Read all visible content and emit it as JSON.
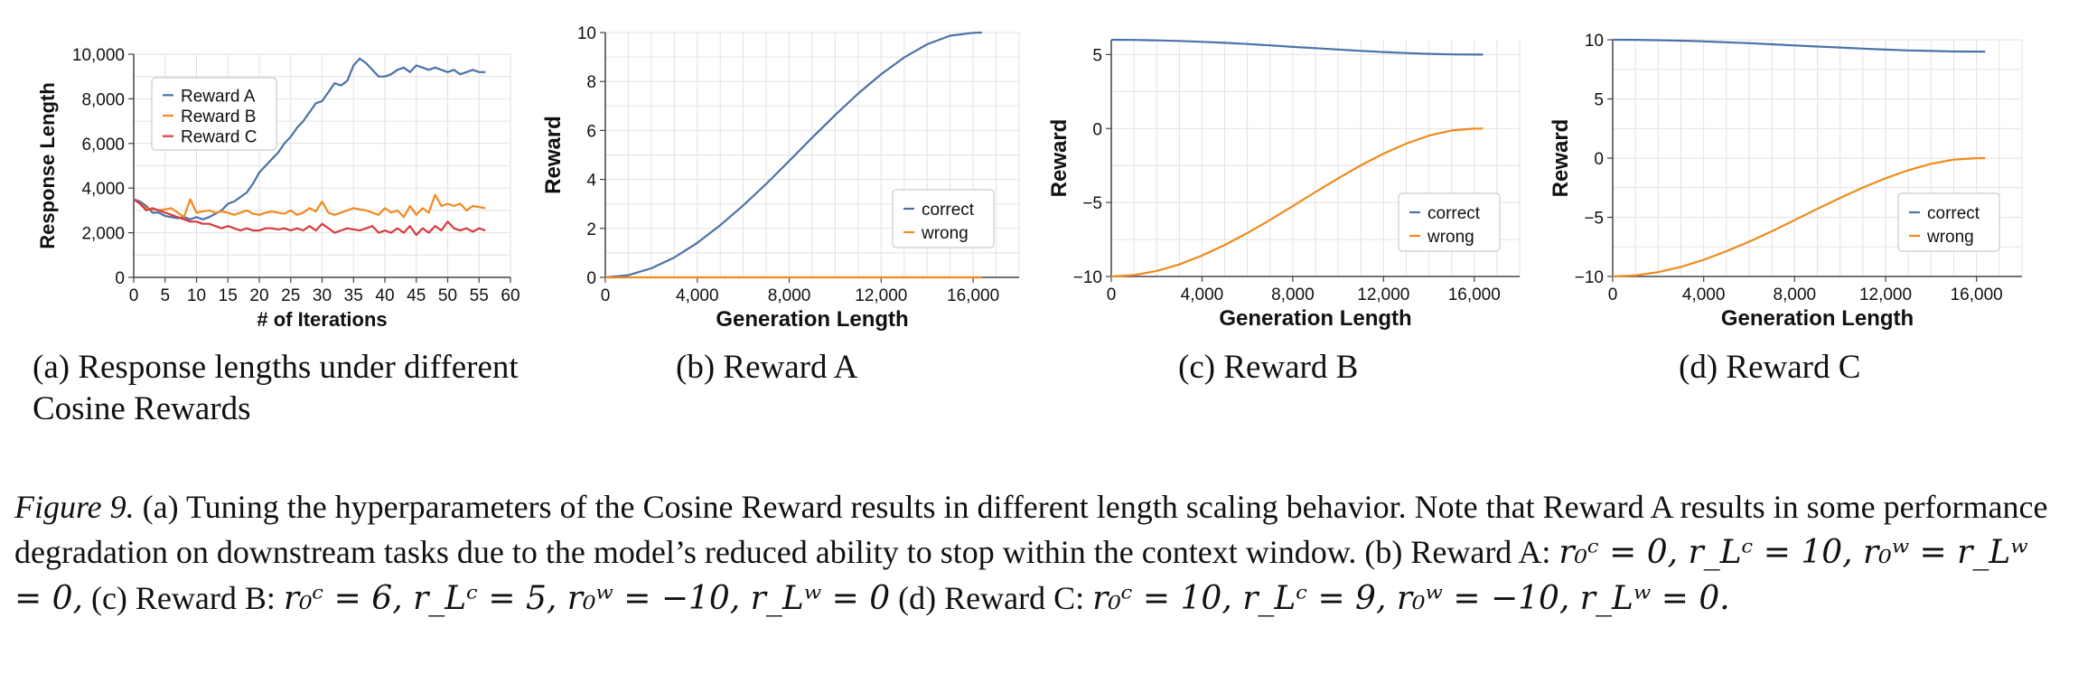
{
  "colors": {
    "blue": "#4a72a8",
    "orange": "#f08a1c",
    "red": "#d83a3e",
    "grid": "#e2e2e2",
    "axis": "#444444"
  },
  "chart_data": [
    {
      "id": "a",
      "type": "line",
      "xlabel": "# of Iterations",
      "ylabel": "Response Length",
      "xlim": [
        0,
        60
      ],
      "ylim": [
        0,
        10000
      ],
      "xticks": [
        0,
        5,
        10,
        15,
        20,
        25,
        30,
        35,
        40,
        45,
        50,
        55,
        60
      ],
      "xtick_labels": [
        "0",
        "5",
        "10",
        "15",
        "20",
        "25",
        "30",
        "35",
        "40",
        "45",
        "50",
        "55",
        "60"
      ],
      "yticks": [
        0,
        2000,
        4000,
        6000,
        8000,
        10000
      ],
      "ytick_labels": [
        "0",
        "2,000",
        "4,000",
        "6,000",
        "8,000",
        "10,000"
      ],
      "legend_position": "top-left",
      "grid": true,
      "series": [
        {
          "name": "Reward A",
          "color": "blue",
          "x": [
            0,
            1,
            2,
            3,
            4,
            5,
            6,
            7,
            8,
            9,
            10,
            11,
            12,
            13,
            14,
            15,
            16,
            17,
            18,
            19,
            20,
            21,
            22,
            23,
            24,
            25,
            26,
            27,
            28,
            29,
            30,
            31,
            32,
            33,
            34,
            35,
            36,
            37,
            38,
            39,
            40,
            41,
            42,
            43,
            44,
            45,
            46,
            47,
            48,
            49,
            50,
            51,
            52,
            53,
            54,
            55,
            56
          ],
          "values": [
            3500,
            3400,
            3200,
            2900,
            2900,
            2750,
            2700,
            2650,
            2700,
            2600,
            2700,
            2600,
            2700,
            2850,
            3000,
            3300,
            3400,
            3600,
            3800,
            4200,
            4700,
            5000,
            5300,
            5600,
            6000,
            6300,
            6700,
            7000,
            7400,
            7800,
            7900,
            8300,
            8700,
            8600,
            8800,
            9500,
            9800,
            9600,
            9300,
            9000,
            9000,
            9100,
            9300,
            9400,
            9200,
            9500,
            9400,
            9300,
            9400,
            9300,
            9200,
            9300,
            9100,
            9200,
            9300,
            9200,
            9200
          ]
        },
        {
          "name": "Reward B",
          "color": "orange",
          "x": [
            0,
            1,
            2,
            3,
            4,
            5,
            6,
            7,
            8,
            9,
            10,
            11,
            12,
            13,
            14,
            15,
            16,
            17,
            18,
            19,
            20,
            21,
            22,
            23,
            24,
            25,
            26,
            27,
            28,
            29,
            30,
            31,
            32,
            33,
            34,
            35,
            36,
            37,
            38,
            39,
            40,
            41,
            42,
            43,
            44,
            45,
            46,
            47,
            48,
            49,
            50,
            51,
            52,
            53,
            54,
            55,
            56
          ],
          "values": [
            3500,
            3300,
            3100,
            3050,
            3000,
            3050,
            3100,
            2900,
            2700,
            3500,
            2900,
            2950,
            3000,
            2900,
            2950,
            2900,
            2800,
            2900,
            3000,
            2850,
            2800,
            2900,
            2950,
            2900,
            2850,
            3000,
            2800,
            2900,
            3100,
            2950,
            3400,
            2900,
            2800,
            2900,
            3000,
            3100,
            3050,
            3000,
            2900,
            2800,
            3100,
            2900,
            3000,
            2700,
            3200,
            2800,
            3100,
            2900,
            3700,
            3200,
            3300,
            3200,
            3300,
            3000,
            3200,
            3150,
            3100
          ]
        },
        {
          "name": "Reward C",
          "color": "red",
          "x": [
            0,
            1,
            2,
            3,
            4,
            5,
            6,
            7,
            8,
            9,
            10,
            11,
            12,
            13,
            14,
            15,
            16,
            17,
            18,
            19,
            20,
            21,
            22,
            23,
            24,
            25,
            26,
            27,
            28,
            29,
            30,
            31,
            32,
            33,
            34,
            35,
            36,
            37,
            38,
            39,
            40,
            41,
            42,
            43,
            44,
            45,
            46,
            47,
            48,
            49,
            50,
            51,
            52,
            53,
            54,
            55,
            56
          ],
          "values": [
            3500,
            3300,
            3000,
            3100,
            3000,
            2900,
            2800,
            2700,
            2600,
            2500,
            2500,
            2400,
            2400,
            2300,
            2200,
            2300,
            2200,
            2100,
            2200,
            2100,
            2100,
            2200,
            2200,
            2150,
            2200,
            2100,
            2200,
            2100,
            2300,
            2100,
            2400,
            2200,
            2000,
            2100,
            2200,
            2150,
            2100,
            2200,
            2300,
            2000,
            2100,
            2000,
            2200,
            2000,
            2300,
            1900,
            2200,
            2000,
            2300,
            2100,
            2500,
            2200,
            2100,
            2200,
            2050,
            2200,
            2100
          ]
        }
      ]
    },
    {
      "id": "b",
      "type": "line",
      "xlabel": "Generation Length",
      "ylabel": "Reward",
      "xlim": [
        0,
        18000
      ],
      "ylim": [
        0,
        10
      ],
      "xticks": [
        0,
        4000,
        8000,
        12000,
        16000
      ],
      "xtick_labels": [
        "0",
        "4,000",
        "8,000",
        "12,000",
        "16,000"
      ],
      "yticks": [
        0,
        2,
        4,
        6,
        8,
        10
      ],
      "ytick_labels": [
        "0",
        "2",
        "4",
        "6",
        "8",
        "10"
      ],
      "legend_position": "bottom-right",
      "grid": true,
      "series": [
        {
          "name": "correct",
          "color": "blue",
          "x": [
            0,
            1000,
            2000,
            3000,
            4000,
            5000,
            6000,
            7000,
            8000,
            9000,
            10000,
            11000,
            12000,
            13000,
            14000,
            15000,
            16000,
            16384
          ],
          "values": [
            0,
            0.09,
            0.37,
            0.81,
            1.41,
            2.13,
            2.94,
            3.82,
            4.76,
            5.71,
            6.63,
            7.51,
            8.3,
            8.98,
            9.52,
            9.87,
            9.99,
            10
          ]
        },
        {
          "name": "wrong",
          "color": "orange",
          "x": [
            0,
            16384
          ],
          "values": [
            0,
            0
          ]
        }
      ]
    },
    {
      "id": "c",
      "type": "line",
      "xlabel": "Generation Length",
      "ylabel": "Reward",
      "xlim": [
        0,
        18000
      ],
      "ylim": [
        -10,
        6
      ],
      "xticks": [
        0,
        4000,
        8000,
        12000,
        16000
      ],
      "xtick_labels": [
        "0",
        "4,000",
        "8,000",
        "12,000",
        "16,000"
      ],
      "yticks": [
        -10,
        -5,
        0,
        5
      ],
      "ytick_labels": [
        "−10",
        "−5",
        "0",
        "5"
      ],
      "legend_position": "bottom-right",
      "grid": true,
      "series": [
        {
          "name": "correct",
          "color": "blue",
          "x": [
            0,
            1000,
            2000,
            3000,
            4000,
            5000,
            6000,
            7000,
            8000,
            9000,
            10000,
            11000,
            12000,
            13000,
            14000,
            15000,
            16000,
            16384
          ],
          "values": [
            6,
            5.99,
            5.96,
            5.92,
            5.86,
            5.79,
            5.71,
            5.62,
            5.52,
            5.43,
            5.34,
            5.25,
            5.17,
            5.1,
            5.05,
            5.01,
            5.0,
            5.0
          ]
        },
        {
          "name": "wrong",
          "color": "orange",
          "x": [
            0,
            1000,
            2000,
            3000,
            4000,
            5000,
            6000,
            7000,
            8000,
            9000,
            10000,
            11000,
            12000,
            13000,
            14000,
            15000,
            16000,
            16384
          ],
          "values": [
            -10,
            -9.91,
            -9.63,
            -9.19,
            -8.59,
            -7.87,
            -7.06,
            -6.18,
            -5.24,
            -4.29,
            -3.37,
            -2.49,
            -1.7,
            -1.02,
            -0.48,
            -0.13,
            -0.01,
            0
          ]
        }
      ]
    },
    {
      "id": "d",
      "type": "line",
      "xlabel": "Generation Length",
      "ylabel": "Reward",
      "xlim": [
        0,
        18000
      ],
      "ylim": [
        -10,
        10
      ],
      "xticks": [
        0,
        4000,
        8000,
        12000,
        16000
      ],
      "xtick_labels": [
        "0",
        "4,000",
        "8,000",
        "12,000",
        "16,000"
      ],
      "yticks": [
        -10,
        -5,
        0,
        5,
        10
      ],
      "ytick_labels": [
        "−10",
        "−5",
        "0",
        "5",
        "10"
      ],
      "legend_position": "bottom-right",
      "grid": true,
      "series": [
        {
          "name": "correct",
          "color": "blue",
          "x": [
            0,
            1000,
            2000,
            3000,
            4000,
            5000,
            6000,
            7000,
            8000,
            9000,
            10000,
            11000,
            12000,
            13000,
            14000,
            15000,
            16000,
            16384
          ],
          "values": [
            10,
            9.99,
            9.96,
            9.92,
            9.86,
            9.79,
            9.71,
            9.62,
            9.52,
            9.43,
            9.34,
            9.25,
            9.17,
            9.1,
            9.05,
            9.01,
            9.0,
            9.0
          ]
        },
        {
          "name": "wrong",
          "color": "orange",
          "x": [
            0,
            1000,
            2000,
            3000,
            4000,
            5000,
            6000,
            7000,
            8000,
            9000,
            10000,
            11000,
            12000,
            13000,
            14000,
            15000,
            16000,
            16384
          ],
          "values": [
            -10,
            -9.91,
            -9.63,
            -9.19,
            -8.59,
            -7.87,
            -7.06,
            -6.18,
            -5.24,
            -4.29,
            -3.37,
            -2.49,
            -1.7,
            -1.02,
            -0.48,
            -0.13,
            -0.01,
            0
          ]
        }
      ]
    }
  ],
  "subcaptions": {
    "a": "(a) Response lengths under different Cosine Rewards",
    "b": "(b) Reward A",
    "c": "(c) Reward B",
    "d": "(d) Reward C"
  },
  "caption": {
    "label": "Figure 9.",
    "text1": " (a) Tuning the hyperparameters of the Cosine Reward results in different length scaling behavior. Note that Reward A results in some performance degradation on downstream tasks due to the model’s reduced ability to stop within the context window. (b) Reward A: ",
    "eq_a": "r₀ᶜ = 0, r_Lᶜ = 10, r₀ʷ = r_Lʷ = 0,",
    "text2": " (c) Reward B: ",
    "eq_b": "r₀ᶜ = 6, r_Lᶜ = 5, r₀ʷ = −10, r_Lʷ = 0",
    "text3": " (d) Reward C: ",
    "eq_c": "r₀ᶜ = 10, r_Lᶜ = 9, r₀ʷ = −10, r_Lʷ = 0."
  }
}
